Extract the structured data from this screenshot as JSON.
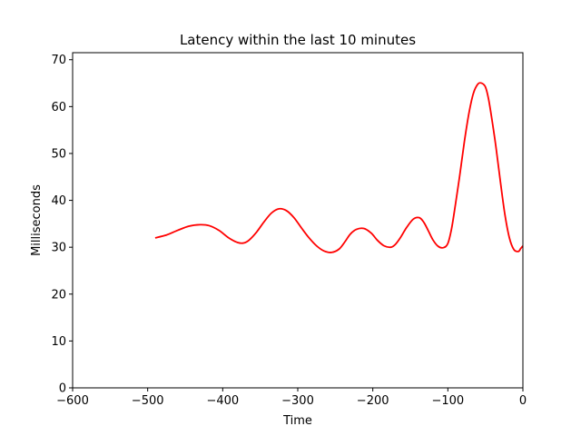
{
  "chart_data": {
    "type": "line",
    "title": "Latency within the last 10 minutes",
    "xlabel": "Time",
    "ylabel": "Milliseconds",
    "xlim": [
      -600,
      0
    ],
    "ylim": [
      0,
      71.5
    ],
    "x_ticks": [
      -600,
      -500,
      -400,
      -300,
      -200,
      -100,
      0
    ],
    "x_tick_labels": [
      "−600",
      "−500",
      "−400",
      "−300",
      "−200",
      "−100",
      "0"
    ],
    "y_ticks": [
      0,
      10,
      20,
      30,
      40,
      50,
      60,
      70
    ],
    "y_tick_labels": [
      "0",
      "10",
      "20",
      "30",
      "40",
      "50",
      "60",
      "70"
    ],
    "grid": false,
    "legend": "none",
    "series": [
      {
        "color": "#ff0000",
        "x": [
          -490,
          -475,
          -460,
          -445,
          -430,
          -418,
          -405,
          -392,
          -380,
          -372,
          -365,
          -355,
          -345,
          -335,
          -325,
          -315,
          -305,
          -295,
          -285,
          -275,
          -265,
          -255,
          -245,
          -237,
          -230,
          -222,
          -212,
          -202,
          -194,
          -185,
          -176,
          -170,
          -163,
          -155,
          -146,
          -138,
          -132,
          -126,
          -120,
          -113,
          -106,
          -100,
          -95,
          -90,
          -84,
          -78,
          -72,
          -66,
          -60,
          -55,
          -50,
          -46,
          -42,
          -36,
          -30,
          -24,
          -18,
          -12,
          -6,
          -3,
          0
        ],
        "y": [
          32.0,
          32.6,
          33.6,
          34.5,
          34.8,
          34.6,
          33.6,
          32.0,
          31.0,
          30.9,
          31.5,
          33.2,
          35.4,
          37.3,
          38.2,
          37.8,
          36.3,
          34.1,
          32.0,
          30.3,
          29.2,
          28.9,
          29.6,
          31.2,
          32.8,
          33.8,
          34.0,
          33.0,
          31.5,
          30.3,
          30.0,
          30.6,
          32.1,
          34.2,
          36.0,
          36.3,
          35.3,
          33.5,
          31.6,
          30.2,
          29.9,
          30.8,
          34.0,
          39.0,
          45.5,
          52.5,
          58.5,
          62.8,
          64.8,
          65.0,
          64.2,
          61.8,
          58.0,
          51.5,
          44.0,
          37.0,
          32.0,
          29.5,
          29.1,
          29.7,
          30.3
        ]
      }
    ]
  }
}
